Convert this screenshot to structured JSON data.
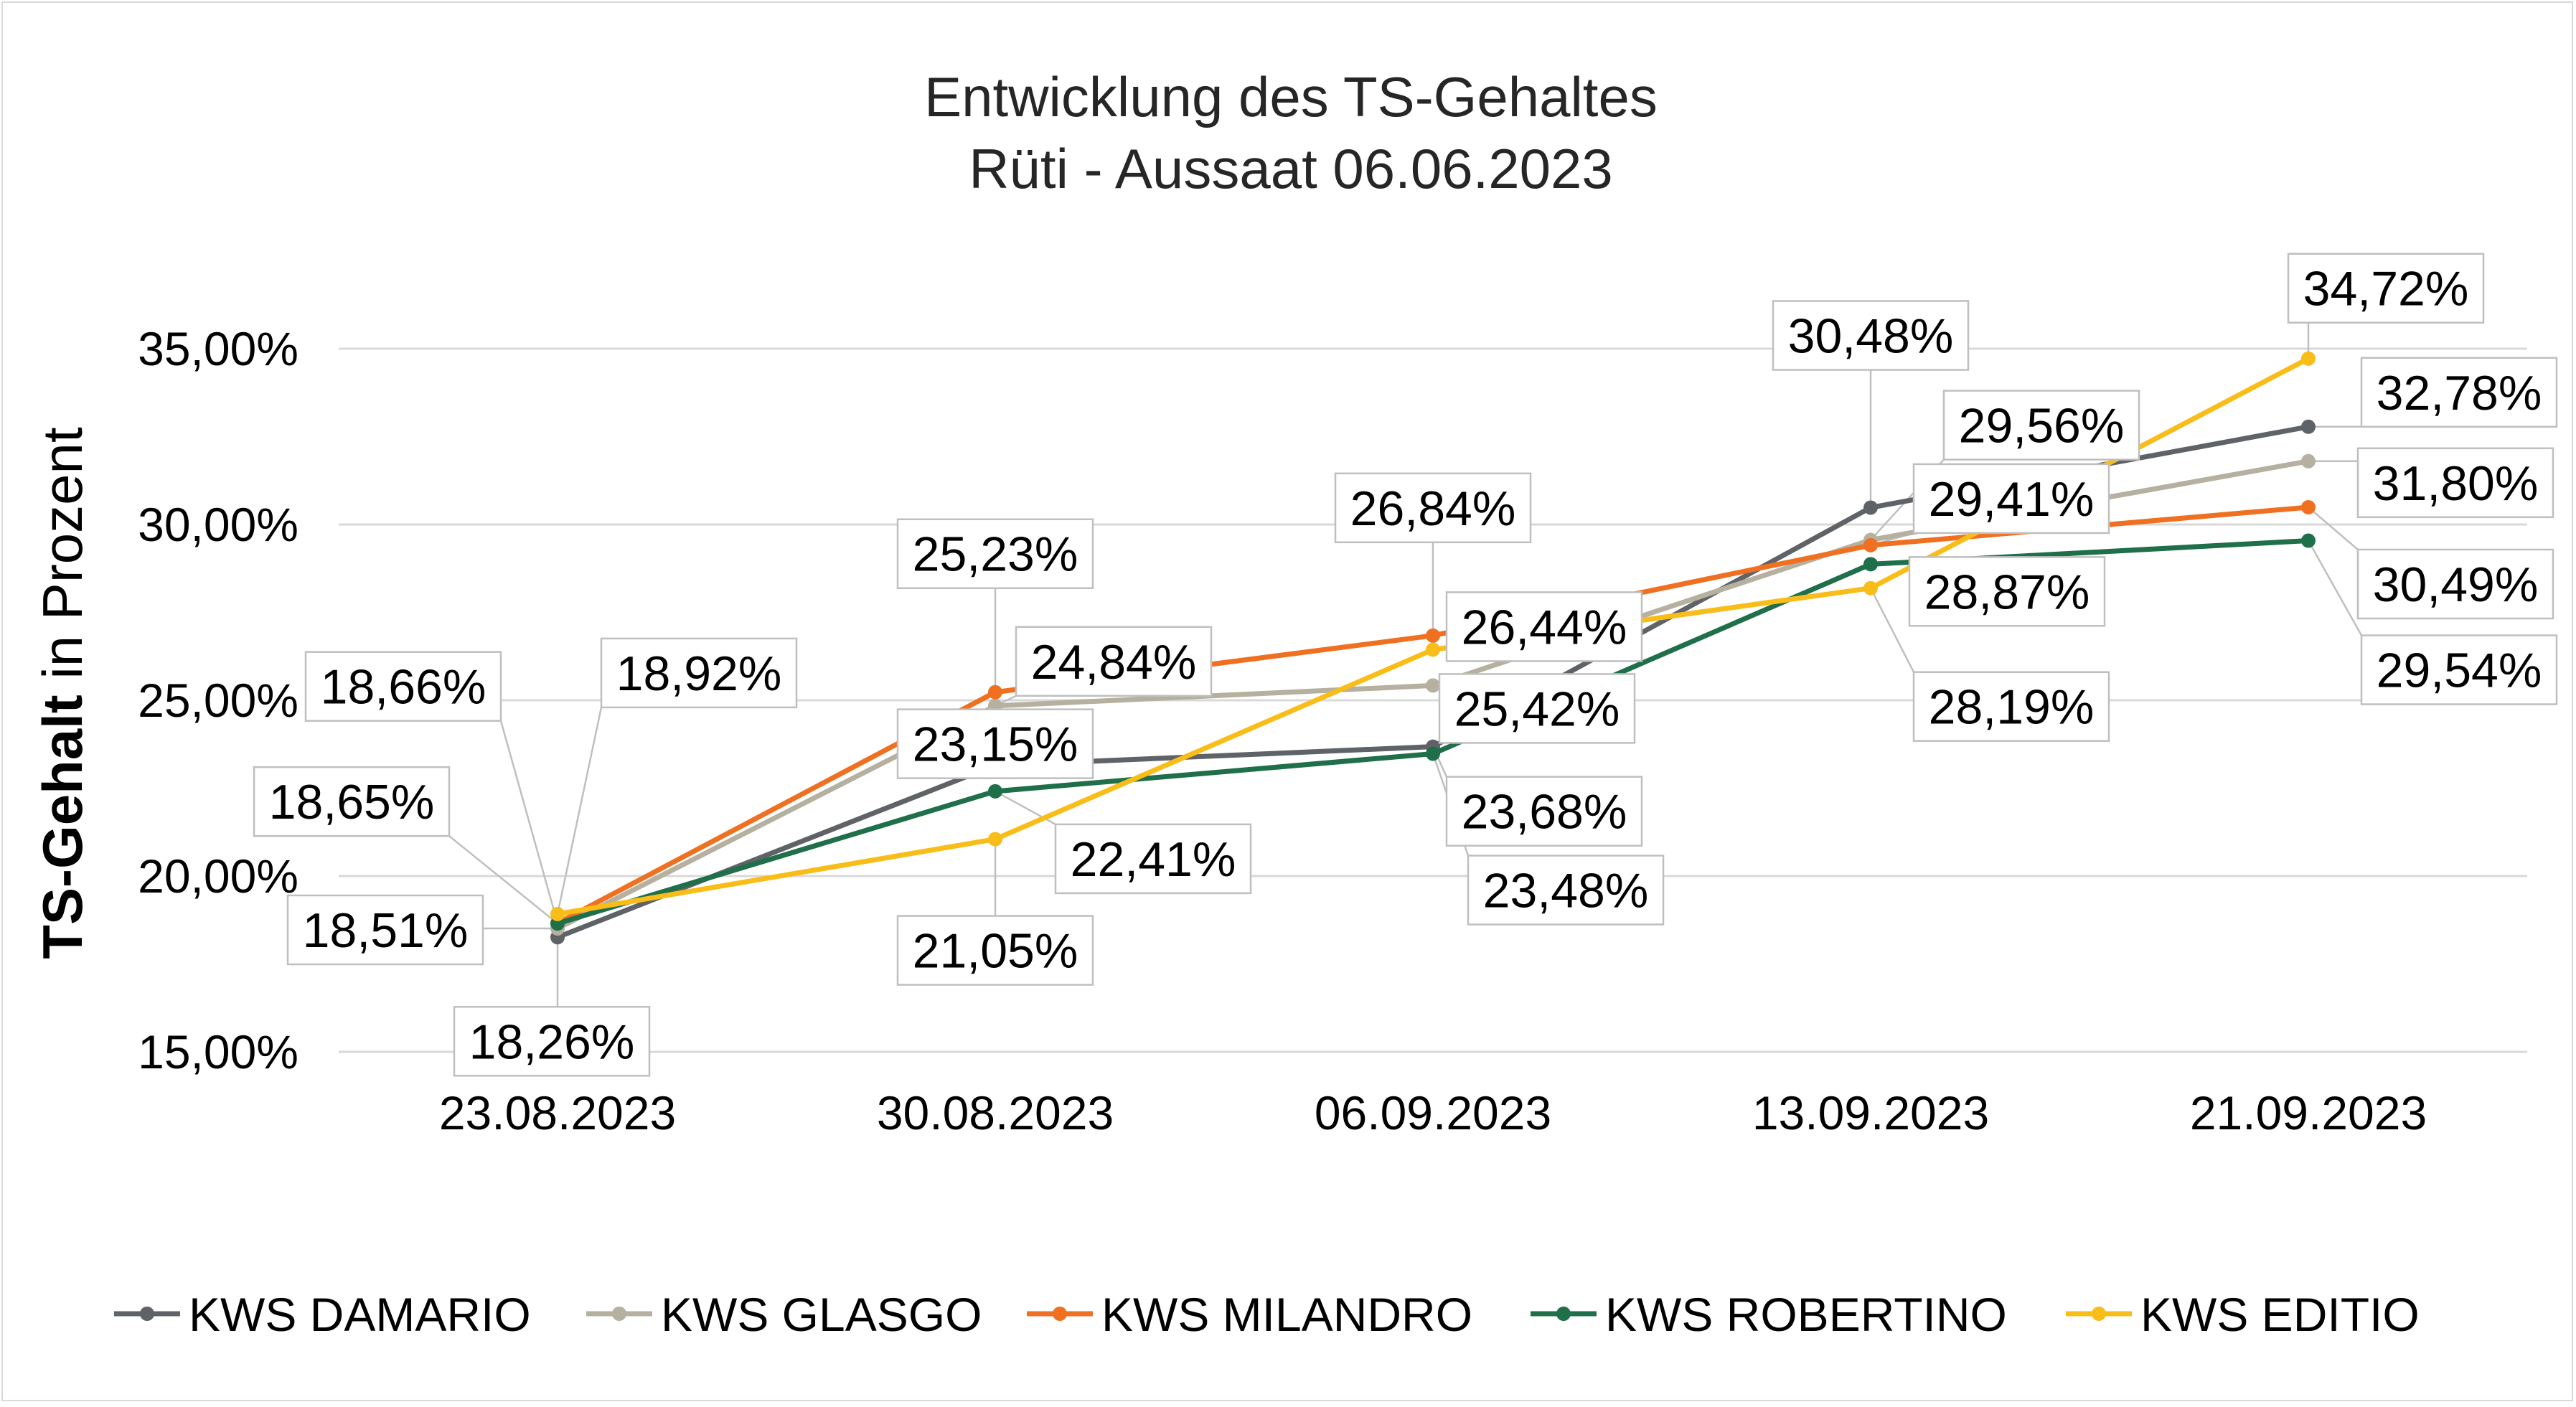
{
  "chart_data": {
    "type": "line",
    "title": "Entwicklung des TS-Gehaltes",
    "subtitle": "Rüti - Aussaat 06.06.2023",
    "ylabel_bold": "TS-Gehalt",
    "ylabel_rest": " in Prozent",
    "categories": [
      "23.08.2023",
      "30.08.2023",
      "06.09.2023",
      "13.09.2023",
      "21.09.2023"
    ],
    "ylim": [
      15,
      37
    ],
    "yticks": [
      {
        "value": 15,
        "label": "15,00%"
      },
      {
        "value": 20,
        "label": "20,00%"
      },
      {
        "value": 25,
        "label": "25,00%"
      },
      {
        "value": 30,
        "label": "30,00%"
      },
      {
        "value": 35,
        "label": "35,00%"
      }
    ],
    "grid": true,
    "legend_position": "bottom",
    "series": [
      {
        "name": "KWS DAMARIO",
        "color": "#5f6368",
        "values": [
          18.26,
          23.15,
          23.68,
          30.48,
          32.78
        ],
        "labels": [
          "18,26%",
          "23,15%",
          "23,68%",
          "30,48%",
          "32,78%"
        ]
      },
      {
        "name": "KWS GLASGO",
        "color": "#b5b09f",
        "values": [
          18.51,
          24.84,
          25.42,
          29.56,
          31.8
        ],
        "labels": [
          "18,51%",
          "24,84%",
          "25,42%",
          "29,56%",
          "31,80%"
        ]
      },
      {
        "name": "KWS MILANDRO",
        "color": "#f07022",
        "values": [
          18.66,
          25.23,
          26.84,
          29.41,
          30.49
        ],
        "labels": [
          "18,66%",
          "25,23%",
          "26,84%",
          "29,41%",
          "30,49%"
        ]
      },
      {
        "name": "KWS ROBERTINO",
        "color": "#1f6f4a",
        "values": [
          18.65,
          22.41,
          23.48,
          28.87,
          29.54
        ],
        "labels": [
          "18,65%",
          "22,41%",
          "23,48%",
          "28,87%",
          "29,54%"
        ]
      },
      {
        "name": "KWS EDITIO",
        "color": "#f9bd19",
        "values": [
          18.92,
          21.05,
          26.44,
          28.19,
          34.72
        ],
        "labels": [
          "18,92%",
          "21,05%",
          "26,44%",
          "28,19%",
          "34,72%"
        ]
      }
    ]
  }
}
